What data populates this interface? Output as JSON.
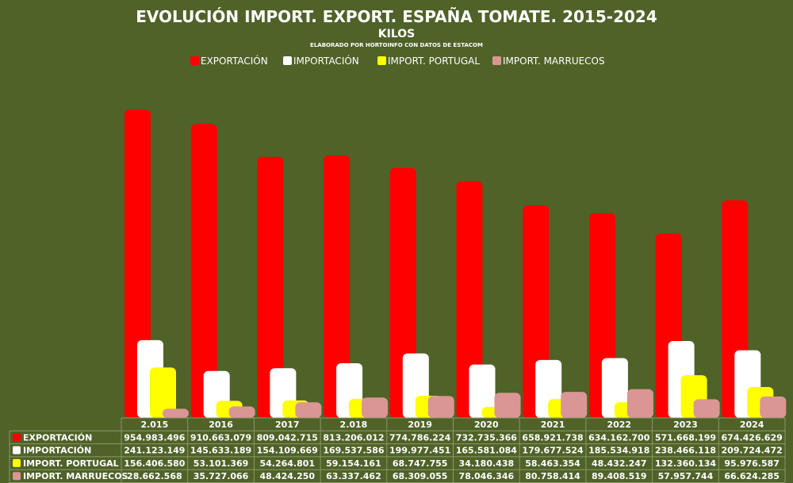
{
  "chart_data": {
    "type": "bar",
    "title": "EVOLUCIÓN IMPORT. EXPORT. ESPAÑA TOMATE.  2015-2024",
    "subtitle": "KILOS",
    "source": "ELABORADO POR HORTOINFO CON DATOS DE ESTACOM",
    "categories": [
      "2.015",
      "2016",
      "2017",
      "2.018",
      "2019",
      "2020",
      "2021",
      "2022",
      "2023",
      "2024"
    ],
    "ylim": [
      0,
      1000000000
    ],
    "legend_position": "top",
    "grid": false,
    "series": [
      {
        "name": "EXPORTACIÓN",
        "color": "#ff0000",
        "values": [
          954983496,
          910663079,
          809042715,
          813206012,
          774786224,
          732735366,
          658921738,
          634162700,
          571668199,
          674426629
        ],
        "labels": [
          "954.983.496",
          "910.663.079",
          "809.042.715",
          "813.206.012",
          "774.786.224",
          "732.735.366",
          "658.921.738",
          "634.162.700",
          "571.668.199",
          "674.426.629"
        ]
      },
      {
        "name": "IMPORTACIÓN",
        "color": "#ffffff",
        "values": [
          241123149,
          145633189,
          154109669,
          169537586,
          199977451,
          165581084,
          179677524,
          185534918,
          238466118,
          209724472
        ],
        "labels": [
          "241.123.149",
          "145.633.189",
          "154.109.669",
          "169.537.586",
          "199.977.451",
          "165.581.084",
          "179.677.524",
          "185.534.918",
          "238.466.118",
          "209.724.472"
        ]
      },
      {
        "name": "IMPORT. PORTUGAL",
        "color": "#ffff00",
        "values": [
          156406580,
          53101369,
          54264801,
          59154161,
          68747755,
          34180438,
          58463354,
          48432247,
          132360134,
          95976587
        ],
        "labels": [
          "156.406.580",
          "53.101.369",
          "54.264.801",
          "59.154.161",
          "68.747.755",
          "34.180.438",
          "58.463.354",
          "48.432.247",
          "132.360.134",
          "95.976.587"
        ]
      },
      {
        "name": "IMPORT. MARRUECOS",
        "color": "#d99694",
        "values": [
          28662568,
          35727066,
          48424250,
          63337462,
          68309055,
          78046346,
          80758414,
          89408519,
          57957744,
          66624285
        ],
        "labels": [
          "28.662.568",
          "35.727.066",
          "48.424.250",
          "63.337.462",
          "68.309.055",
          "78.046.346",
          "80.758.414",
          "89.408.519",
          "57.957.744",
          "66.624.285"
        ]
      }
    ]
  }
}
